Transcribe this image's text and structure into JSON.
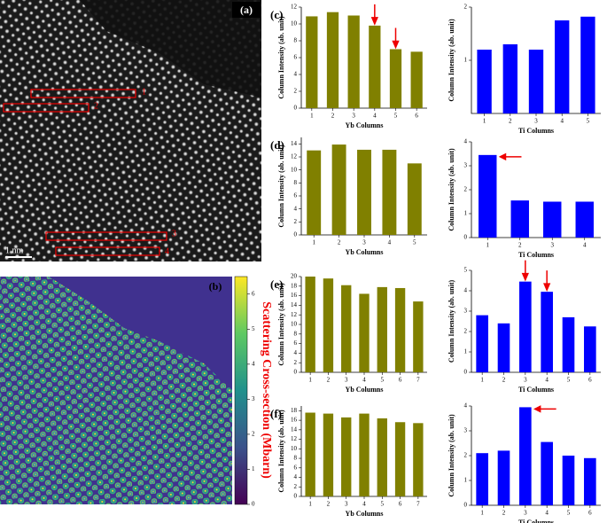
{
  "chart_data": [
    {
      "type": "bar",
      "title": "(c)",
      "xlabel": "Yb Columns",
      "ylabel": "Column Intensity (ab. unit)",
      "categories": [
        "1",
        "2",
        "3",
        "4",
        "5",
        "6"
      ],
      "values": [
        10.9,
        11.4,
        11.0,
        9.8,
        7.0,
        6.7
      ],
      "color": "#808000",
      "ylim": [
        0,
        12
      ],
      "yticks": [
        0,
        2,
        4,
        6,
        8,
        10,
        12
      ]
    },
    {
      "type": "bar",
      "xlabel": "Ti Columns",
      "ylabel": "Column Intensity (ab. unit)",
      "categories": [
        "1",
        "2",
        "3",
        "4",
        "5"
      ],
      "values": [
        1.2,
        1.3,
        1.2,
        1.75,
        1.82
      ],
      "color": "#0000ff",
      "ylim": [
        0,
        2
      ],
      "yticks": [
        1,
        2
      ]
    },
    {
      "type": "bar",
      "title": "(d)",
      "xlabel": "Yb Columns",
      "ylabel": "Column Intensity (ab. unit)",
      "categories": [
        "1",
        "2",
        "3",
        "4",
        "5"
      ],
      "values": [
        13.0,
        13.9,
        13.1,
        13.1,
        11.0
      ],
      "color": "#808000",
      "ylim": [
        0,
        15
      ],
      "yticks": [
        0,
        2,
        4,
        6,
        8,
        10,
        12,
        14
      ]
    },
    {
      "type": "bar",
      "xlabel": "Ti Columns",
      "ylabel": "Column Intensity (ab. unit)",
      "categories": [
        "1",
        "2",
        "3",
        "4"
      ],
      "values": [
        3.45,
        1.55,
        1.5,
        1.5
      ],
      "color": "#0000ff",
      "ylim": [
        0,
        4
      ],
      "yticks": [
        0,
        1,
        2,
        3,
        4
      ]
    },
    {
      "type": "bar",
      "title": "(e)",
      "xlabel": "Yb Columns",
      "ylabel": "Column Intensity (ab. unit)",
      "categories": [
        "1",
        "2",
        "3",
        "4",
        "5",
        "6",
        "7"
      ],
      "values": [
        20.0,
        19.6,
        18.2,
        16.4,
        17.8,
        17.6,
        14.8
      ],
      "color": "#808000",
      "ylim": [
        0,
        20
      ],
      "yticks": [
        0,
        2,
        4,
        6,
        8,
        10,
        12,
        14,
        16,
        18,
        20
      ]
    },
    {
      "type": "bar",
      "xlabel": "Ti Columns",
      "ylabel": "Column Intensity (ab. unit)",
      "categories": [
        "1",
        "2",
        "3",
        "4",
        "5",
        "6"
      ],
      "values": [
        2.8,
        2.4,
        4.45,
        3.95,
        2.7,
        2.25
      ],
      "color": "#0000ff",
      "ylim": [
        0,
        5
      ],
      "yticks": [
        0,
        1,
        2,
        3,
        4,
        5
      ]
    },
    {
      "type": "bar",
      "title": "(f)",
      "xlabel": "Yb Columns",
      "ylabel": "Column Intensity (ab. unit)",
      "categories": [
        "1",
        "2",
        "3",
        "4",
        "5",
        "6",
        "7"
      ],
      "values": [
        17.6,
        17.4,
        16.6,
        17.4,
        16.4,
        15.6,
        15.4
      ],
      "color": "#808000",
      "ylim": [
        0,
        19
      ],
      "yticks": [
        0,
        2,
        4,
        6,
        8,
        10,
        12,
        14,
        16,
        18
      ]
    },
    {
      "type": "bar",
      "xlabel": "Ti Columns",
      "ylabel": "Column Intensity (ab. unit)",
      "categories": [
        "1",
        "2",
        "3",
        "4",
        "5",
        "6"
      ],
      "values": [
        2.1,
        2.2,
        3.95,
        2.55,
        2.0,
        1.9
      ],
      "color": "#0000ff",
      "ylim": [
        0,
        4
      ],
      "yticks": [
        0,
        1,
        2,
        3,
        4
      ]
    }
  ],
  "panel_a": {
    "label": "(a)",
    "scale_bar": "1 nm",
    "boxes": [
      "1",
      "2",
      "3",
      "4"
    ]
  },
  "panel_b": {
    "label": "(b)",
    "colorbar_label": "Scattering Cross-section (Mbarn)",
    "clim": [
      0,
      6.5
    ],
    "ticks": [
      0,
      1,
      2,
      3,
      4,
      5,
      6
    ]
  }
}
